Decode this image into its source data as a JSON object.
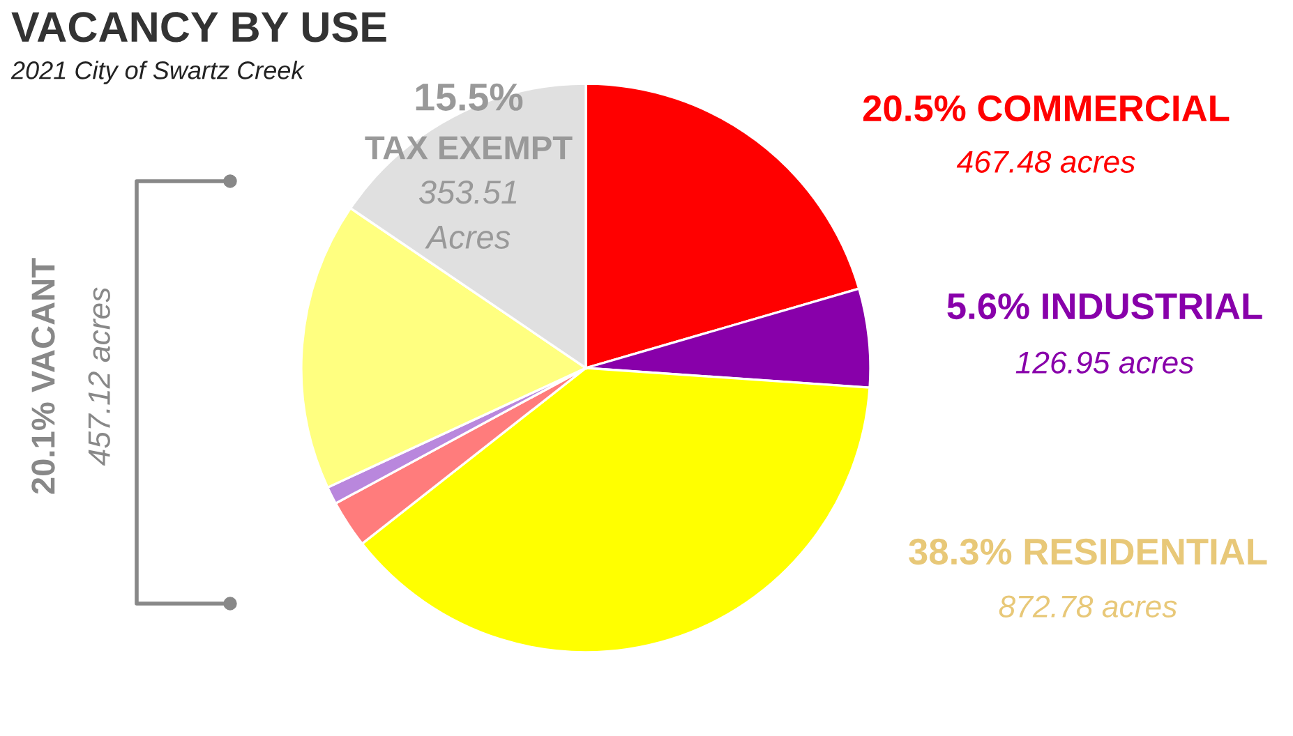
{
  "chart_data": {
    "type": "pie",
    "title": "VACANCY BY USE",
    "subtitle": "2021 City of Swartz Creek",
    "categories": [
      "COMMERCIAL",
      "INDUSTRIAL",
      "RESIDENTIAL",
      null,
      null,
      null,
      "TAX EXEMPT"
    ],
    "values": [
      20.5,
      5.6,
      38.3,
      2.7,
      1.0,
      16.4,
      15.5
    ],
    "colors": [
      "#ff0000",
      "#8800aa",
      "#ffff00",
      "#ff7c7c",
      "#b987dd",
      "#ffff80",
      "#e0e0e0"
    ],
    "value_labels": [
      "20.5%",
      "5.6%",
      "38.3%",
      null,
      null,
      null,
      "15.5%"
    ],
    "annotations": [
      "467.48 acres",
      "126.95 acres",
      "872.78 acres",
      "353.51\nAcres",
      "20.1% VACANT",
      "457.12 acres"
    ],
    "legend": false
  }
}
